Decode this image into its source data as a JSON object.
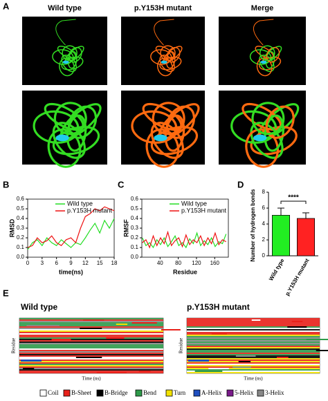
{
  "panel_labels": [
    "A",
    "B",
    "C",
    "D",
    "E"
  ],
  "panel_a": {
    "columns": [
      "Wild type",
      "p.Y153H mutant",
      "Merge"
    ]
  },
  "chart_data": [
    {
      "type": "line",
      "x_label": "time(ns)",
      "y_label": "RMSD",
      "x": [
        0,
        1,
        2,
        3,
        4,
        5,
        6,
        7,
        8,
        9,
        10,
        11,
        12,
        13,
        14,
        15,
        16,
        17,
        18
      ],
      "series": [
        {
          "name": "Wild type",
          "color": "#22dd22",
          "values": [
            0.08,
            0.15,
            0.18,
            0.12,
            0.2,
            0.15,
            0.12,
            0.18,
            0.14,
            0.1,
            0.15,
            0.13,
            0.2,
            0.28,
            0.35,
            0.25,
            0.38,
            0.3,
            0.4
          ]
        },
        {
          "name": "p.Y153H mutant",
          "color": "#ee1111",
          "values": [
            0.1,
            0.12,
            0.2,
            0.15,
            0.17,
            0.22,
            0.15,
            0.12,
            0.18,
            0.2,
            0.15,
            0.3,
            0.42,
            0.45,
            0.5,
            0.48,
            0.52,
            0.5,
            0.48
          ]
        }
      ],
      "xlim": [
        0,
        18
      ],
      "xticks": [
        0,
        3,
        6,
        9,
        12,
        15,
        18
      ],
      "ylim": [
        0,
        0.6
      ],
      "yticks": [
        {
          "value": 0,
          "label": "0.0"
        },
        0.1,
        0.2,
        0.3,
        0.4,
        0.5,
        0.6
      ],
      "legend": "top-right"
    },
    {
      "type": "line",
      "x_label": "Residue",
      "y_label": "RMSF",
      "x": [
        1,
        9,
        17,
        25,
        33,
        41,
        49,
        57,
        65,
        73,
        81,
        89,
        97,
        105,
        113,
        121,
        129,
        137,
        145,
        153,
        161,
        169,
        177,
        185
      ],
      "series": [
        {
          "name": "Wild type",
          "color": "#22dd22",
          "values": [
            0.2,
            0.12,
            0.15,
            0.1,
            0.18,
            0.13,
            0.2,
            0.11,
            0.16,
            0.22,
            0.12,
            0.15,
            0.1,
            0.19,
            0.14,
            0.25,
            0.12,
            0.17,
            0.13,
            0.2,
            0.11,
            0.16,
            0.14,
            0.24
          ]
        },
        {
          "name": "p.Y153H mutant",
          "color": "#ee1111",
          "values": [
            0.15,
            0.18,
            0.1,
            0.22,
            0.12,
            0.2,
            0.14,
            0.26,
            0.12,
            0.17,
            0.2,
            0.11,
            0.23,
            0.13,
            0.18,
            0.15,
            0.22,
            0.12,
            0.2,
            0.14,
            0.25,
            0.13,
            0.18,
            0.16
          ]
        }
      ],
      "xlim": [
        0,
        190
      ],
      "xticks": [
        40,
        80,
        120,
        160
      ],
      "ylim": [
        0,
        0.6
      ],
      "yticks": [
        {
          "value": 0,
          "label": "0.0"
        },
        0.1,
        0.2,
        0.3,
        0.4,
        0.5,
        0.6
      ],
      "legend": "top-right"
    },
    {
      "type": "bar",
      "y_label": "Number of hydrogen bonds",
      "categories": [
        "Wild type",
        "p.Y153H mutant"
      ],
      "values": [
        5.1,
        4.7
      ],
      "errors": [
        0.9,
        0.7
      ],
      "colors": [
        "#22ee22",
        "#ff2222"
      ],
      "annotation": "****",
      "ylim": [
        0,
        8
      ],
      "yticks": [
        0,
        2,
        4,
        6,
        8
      ]
    }
  ],
  "panel_e": {
    "titles": [
      "Wild type",
      "p.Y153H mutant"
    ],
    "y_label": "Residue",
    "x_label": "Time (ns)",
    "legend": [
      {
        "name": "Coil",
        "color": "#ffffff"
      },
      {
        "name": "B-Sheet",
        "color": "#e8201a"
      },
      {
        "name": "B-Bridge",
        "color": "#000000"
      },
      {
        "name": "Bend",
        "color": "#2e9a4a"
      },
      {
        "name": "Turn",
        "color": "#f2e200"
      },
      {
        "name": "A-Helix",
        "color": "#1f4fc0"
      },
      {
        "name": "5-Helix",
        "color": "#7a1a8a"
      },
      {
        "name": "3-Helix",
        "color": "#888888"
      }
    ]
  }
}
